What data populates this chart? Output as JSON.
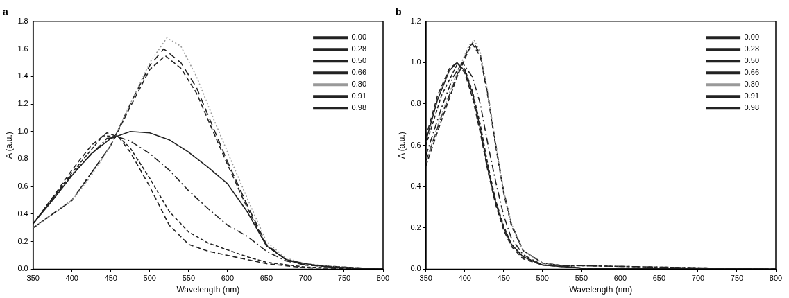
{
  "chart_data": [
    {
      "type": "line",
      "title": "a",
      "xlabel": "Wavelength (nm)",
      "ylabel": "A (a.u.)",
      "xlim": [
        350,
        800
      ],
      "xticks": [
        350,
        400,
        450,
        500,
        550,
        600,
        650,
        700,
        750,
        800
      ],
      "ylim": [
        0,
        1.8
      ],
      "yticks": [
        {
          "value": 0,
          "label": "0.0"
        },
        {
          "value": 0.2,
          "label": "0.2"
        },
        {
          "value": 0.4,
          "label": "0.4"
        },
        {
          "value": 0.6,
          "label": "0.6"
        },
        {
          "value": 0.8,
          "label": "0.8"
        },
        {
          "value": 1,
          "label": "1.0"
        },
        {
          "value": 1.2,
          "label": "1.2"
        },
        {
          "value": 1.4,
          "label": "1.4"
        },
        {
          "value": 1.6,
          "label": "1.6"
        },
        {
          "value": 1.8,
          "label": "1.8"
        }
      ],
      "grid": false,
      "legend": "top right",
      "marker": "none",
      "series": [
        {
          "name": "0.00",
          "color": "#222222",
          "line_style": "solid",
          "x": [
            350,
            375,
            400,
            425,
            450,
            475,
            500,
            525,
            550,
            575,
            600,
            625,
            650,
            675,
            700,
            725,
            750,
            800
          ],
          "values": [
            0.33,
            0.5,
            0.68,
            0.84,
            0.95,
            1.0,
            0.99,
            0.94,
            0.85,
            0.74,
            0.62,
            0.42,
            0.17,
            0.07,
            0.04,
            0.02,
            0.01,
            0
          ]
        },
        {
          "name": "0.28",
          "color": "#222222",
          "line_style": "dashed",
          "x": [
            350,
            375,
            400,
            425,
            445,
            460,
            475,
            500,
            525,
            550,
            575,
            600,
            625,
            650,
            700,
            800
          ],
          "values": [
            0.33,
            0.52,
            0.72,
            0.9,
            0.99,
            0.96,
            0.85,
            0.6,
            0.32,
            0.18,
            0.13,
            0.1,
            0.07,
            0.04,
            0.01,
            0
          ]
        },
        {
          "name": "0.50",
          "color": "#222222",
          "line_style": "dashed",
          "x": [
            350,
            400,
            440,
            460,
            475,
            500,
            525,
            550,
            575,
            600,
            625,
            650,
            700,
            800
          ],
          "values": [
            0.33,
            0.7,
            0.97,
            0.96,
            0.88,
            0.66,
            0.42,
            0.27,
            0.19,
            0.14,
            0.09,
            0.05,
            0.015,
            0
          ]
        },
        {
          "name": "0.66",
          "color": "#222222",
          "line_style": "dashed",
          "x": [
            350,
            400,
            445,
            460,
            475,
            500,
            525,
            550,
            575,
            600,
            625,
            650,
            675,
            700,
            750,
            800
          ],
          "values": [
            0.33,
            0.69,
            0.95,
            0.96,
            0.93,
            0.84,
            0.72,
            0.57,
            0.44,
            0.32,
            0.24,
            0.13,
            0.06,
            0.03,
            0.01,
            0
          ]
        },
        {
          "name": "0.80",
          "color": "#999999",
          "line_style": "dotted",
          "x": [
            350,
            400,
            425,
            450,
            475,
            500,
            522,
            540,
            560,
            580,
            600,
            625,
            650,
            675,
            700,
            750,
            800
          ],
          "values": [
            0.3,
            0.5,
            0.68,
            0.9,
            1.2,
            1.5,
            1.68,
            1.62,
            1.4,
            1.12,
            0.85,
            0.52,
            0.2,
            0.08,
            0.04,
            0.01,
            0
          ]
        },
        {
          "name": "0.91",
          "color": "#222222",
          "line_style": "dashed",
          "x": [
            350,
            400,
            450,
            475,
            500,
            518,
            540,
            560,
            580,
            600,
            625,
            650,
            675,
            700,
            800
          ],
          "values": [
            0.3,
            0.5,
            0.9,
            1.2,
            1.48,
            1.6,
            1.5,
            1.32,
            1.05,
            0.78,
            0.47,
            0.18,
            0.07,
            0.03,
            0
          ]
        },
        {
          "name": "0.98",
          "color": "#222222",
          "line_style": "dashed",
          "x": [
            350,
            400,
            450,
            475,
            500,
            520,
            540,
            560,
            580,
            600,
            625,
            650,
            675,
            700,
            800
          ],
          "values": [
            0.3,
            0.5,
            0.9,
            1.18,
            1.45,
            1.55,
            1.46,
            1.28,
            1.02,
            0.76,
            0.45,
            0.17,
            0.07,
            0.03,
            0
          ]
        }
      ]
    },
    {
      "type": "line",
      "title": "b",
      "xlabel": "Wavelength (nm)",
      "ylabel": "A (a.u.)",
      "xlim": [
        350,
        800
      ],
      "xticks": [
        350,
        400,
        450,
        500,
        550,
        600,
        650,
        700,
        750,
        800
      ],
      "ylim": [
        0,
        1.2
      ],
      "yticks": [
        {
          "value": 0,
          "label": "0.0"
        },
        {
          "value": 0.2,
          "label": "0.2"
        },
        {
          "value": 0.4,
          "label": "0.4"
        },
        {
          "value": 0.6,
          "label": "0.6"
        },
        {
          "value": 0.8,
          "label": "0.8"
        },
        {
          "value": 1,
          "label": "1.0"
        },
        {
          "value": 1.2,
          "label": "1.2"
        }
      ],
      "grid": false,
      "legend": "top right",
      "marker": "none",
      "series": [
        {
          "name": "0.00",
          "color": "#222222",
          "line_style": "solid",
          "x": [
            350,
            365,
            380,
            390,
            400,
            410,
            420,
            430,
            440,
            450,
            460,
            475,
            500,
            550,
            800
          ],
          "values": [
            0.62,
            0.82,
            0.96,
            1.0,
            0.96,
            0.85,
            0.68,
            0.48,
            0.32,
            0.2,
            0.12,
            0.06,
            0.02,
            0.005,
            0
          ]
        },
        {
          "name": "0.28",
          "color": "#222222",
          "line_style": "dashed",
          "x": [
            350,
            365,
            380,
            390,
            400,
            410,
            420,
            430,
            440,
            450,
            460,
            475,
            500,
            550,
            800
          ],
          "values": [
            0.64,
            0.84,
            0.97,
            1.0,
            0.95,
            0.83,
            0.66,
            0.47,
            0.31,
            0.19,
            0.11,
            0.05,
            0.02,
            0.005,
            0
          ]
        },
        {
          "name": "0.50",
          "color": "#222222",
          "line_style": "dashed",
          "x": [
            350,
            370,
            390,
            400,
            410,
            420,
            430,
            440,
            450,
            460,
            475,
            500,
            800
          ],
          "values": [
            0.6,
            0.84,
            0.99,
            0.97,
            0.86,
            0.7,
            0.5,
            0.33,
            0.21,
            0.12,
            0.06,
            0.02,
            0
          ]
        },
        {
          "name": "0.66",
          "color": "#222222",
          "line_style": "dashed",
          "x": [
            350,
            370,
            385,
            397,
            410,
            420,
            430,
            440,
            450,
            460,
            475,
            500,
            800
          ],
          "values": [
            0.55,
            0.78,
            0.93,
            1.0,
            0.93,
            0.8,
            0.6,
            0.42,
            0.26,
            0.15,
            0.07,
            0.02,
            0
          ]
        },
        {
          "name": "0.80",
          "color": "#999999",
          "line_style": "dotted",
          "x": [
            350,
            370,
            390,
            405,
            412,
            420,
            430,
            440,
            450,
            460,
            475,
            500,
            550,
            800
          ],
          "values": [
            0.52,
            0.75,
            0.95,
            1.08,
            1.11,
            1.05,
            0.85,
            0.6,
            0.38,
            0.22,
            0.09,
            0.03,
            0.005,
            0
          ]
        },
        {
          "name": "0.91",
          "color": "#222222",
          "line_style": "dashed",
          "x": [
            350,
            370,
            390,
            405,
            411,
            420,
            430,
            440,
            450,
            460,
            475,
            500,
            550,
            800
          ],
          "values": [
            0.52,
            0.74,
            0.94,
            1.07,
            1.1,
            1.04,
            0.84,
            0.6,
            0.38,
            0.22,
            0.09,
            0.03,
            0.005,
            0
          ]
        },
        {
          "name": "0.98",
          "color": "#222222",
          "line_style": "dashed",
          "x": [
            350,
            370,
            390,
            405,
            410,
            420,
            430,
            440,
            450,
            460,
            475,
            500,
            550,
            800
          ],
          "values": [
            0.5,
            0.72,
            0.93,
            1.06,
            1.09,
            1.03,
            0.83,
            0.59,
            0.37,
            0.21,
            0.09,
            0.03,
            0.005,
            0
          ]
        }
      ]
    }
  ]
}
